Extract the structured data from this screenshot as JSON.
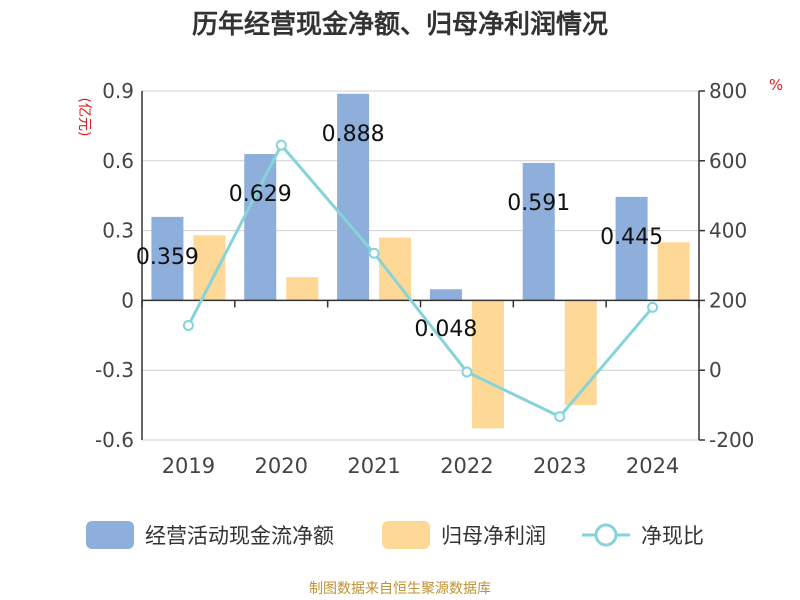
{
  "chart_data": {
    "type": "bar",
    "title": "历年经营现金净额、归母净利润情况",
    "categories": [
      "2019",
      "2020",
      "2021",
      "2022",
      "2023",
      "2024"
    ],
    "series": [
      {
        "name": "经营活动现金流净额",
        "type": "bar",
        "axis": "left",
        "color": "#8eaedb",
        "values": [
          0.359,
          0.629,
          0.888,
          0.048,
          0.591,
          0.445
        ],
        "labels": [
          "0.359",
          "0.629",
          "0.888",
          "0.048",
          "0.591",
          "0.445"
        ]
      },
      {
        "name": "归母净利润",
        "type": "bar",
        "axis": "left",
        "color": "#fdd897",
        "values": [
          0.28,
          0.1,
          0.27,
          -0.55,
          -0.45,
          0.25
        ]
      },
      {
        "name": "净现比",
        "type": "line",
        "axis": "right",
        "color": "#86d3d8",
        "values": [
          128,
          645,
          335,
          -5,
          -133,
          180
        ]
      }
    ],
    "y_left": {
      "unit": "(亿元)",
      "min": -0.6,
      "max": 0.9,
      "ticks": [
        "0.9",
        "0.6",
        "0.3",
        "0",
        "-0.3",
        "-0.6"
      ]
    },
    "y_right": {
      "unit": "%",
      "min": -200,
      "max": 800,
      "ticks": [
        "800",
        "600",
        "400",
        "200",
        "0",
        "-200"
      ]
    },
    "legend_position": "bottom",
    "source": "制图数据来自恒生聚源数据库"
  }
}
